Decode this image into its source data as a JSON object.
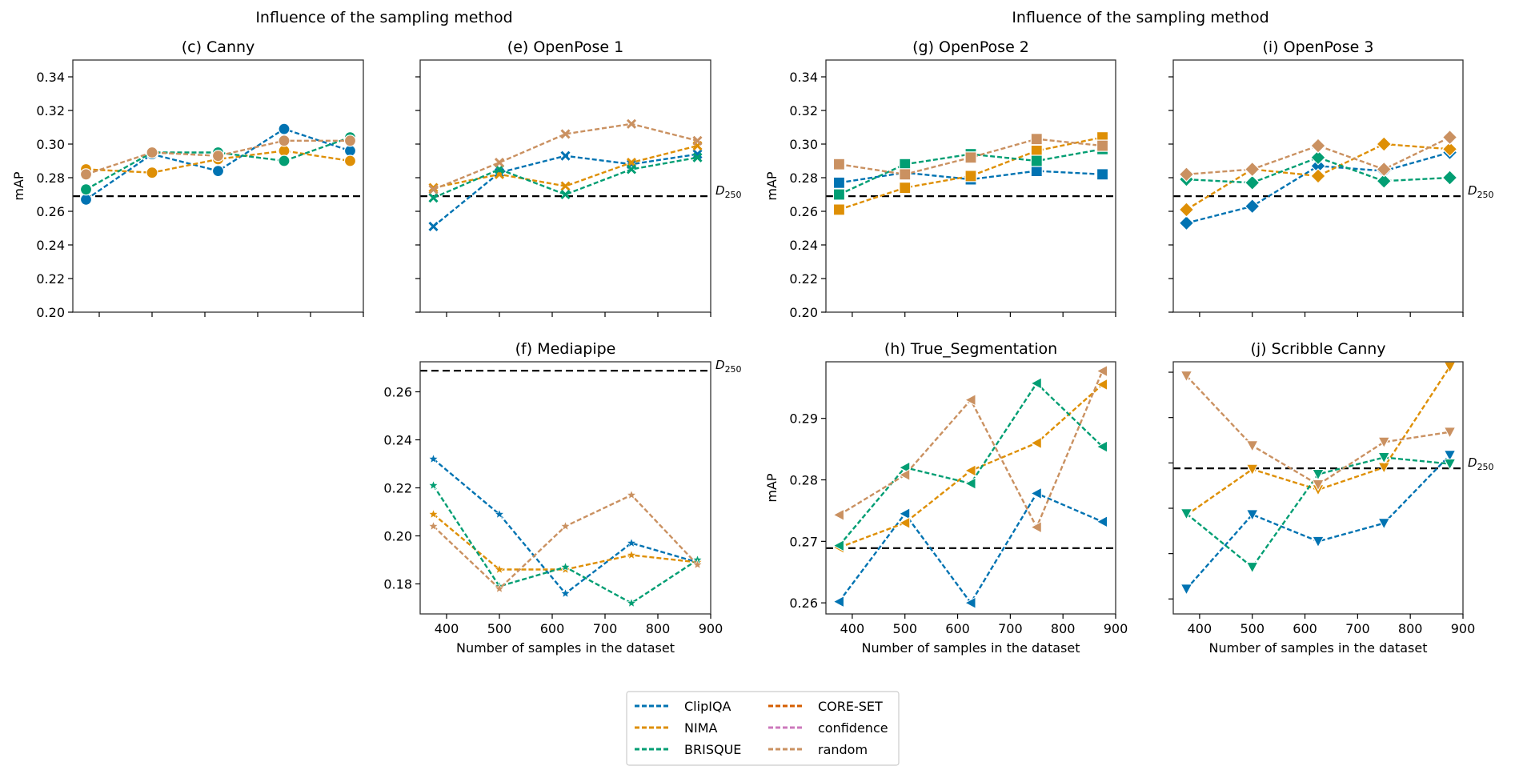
{
  "suptitles": [
    "Influence of the sampling method",
    "Influence of the sampling method"
  ],
  "legend": {
    "entries": [
      {
        "label": "ClipIQA",
        "color": "#0173b2"
      },
      {
        "label": "NIMA",
        "color": "#de8f05"
      },
      {
        "label": "BRISQUE",
        "color": "#029e73"
      },
      {
        "label": "CORE-SET",
        "color": "#d55e00"
      },
      {
        "label": "confidence",
        "color": "#cc78bc"
      },
      {
        "label": "random",
        "color": "#ca9161"
      }
    ]
  },
  "chart_data": [
    {
      "id": "c",
      "type": "line",
      "title": "(c) Canny",
      "marker": "circle",
      "xlabel": "",
      "ylabel": "mAP",
      "x": [
        375,
        500,
        625,
        750,
        875
      ],
      "xlim": [
        350,
        900
      ],
      "xticks": [
        400,
        500,
        600,
        700,
        800,
        900
      ],
      "show_xtick_labels": false,
      "ylim": [
        0.2,
        0.35
      ],
      "yticks": [
        0.2,
        0.22,
        0.24,
        0.26,
        0.28,
        0.3,
        0.32,
        0.34
      ],
      "ytick_labels": [
        "0.20",
        "0.22",
        "0.24",
        "0.26",
        "0.28",
        "0.30",
        "0.32",
        "0.34"
      ],
      "baseline": {
        "label": "",
        "value": 0.269
      },
      "series": [
        {
          "name": "ClipIQA",
          "values": [
            0.267,
            0.294,
            0.284,
            0.309,
            0.296
          ]
        },
        {
          "name": "NIMA",
          "values": [
            0.285,
            0.283,
            0.291,
            0.296,
            0.29
          ]
        },
        {
          "name": "BRISQUE",
          "values": [
            0.273,
            0.295,
            0.295,
            0.29,
            0.304
          ]
        },
        {
          "name": "random",
          "values": [
            0.282,
            0.295,
            0.293,
            0.302,
            0.302
          ]
        }
      ]
    },
    {
      "id": "e",
      "type": "line",
      "title": "(e) OpenPose 1",
      "marker": "x",
      "xlabel": "",
      "ylabel": "",
      "x": [
        375,
        500,
        625,
        750,
        875
      ],
      "xlim": [
        350,
        900
      ],
      "xticks": [
        400,
        500,
        600,
        700,
        800,
        900
      ],
      "show_xtick_labels": false,
      "ylim": [
        0.2,
        0.35
      ],
      "yticks": [
        0.2,
        0.22,
        0.24,
        0.26,
        0.28,
        0.3,
        0.32,
        0.34
      ],
      "ytick_labels": [],
      "baseline": {
        "label": "D250",
        "value": 0.269
      },
      "series": [
        {
          "name": "ClipIQA",
          "values": [
            0.251,
            0.283,
            0.293,
            0.288,
            0.294
          ]
        },
        {
          "name": "NIMA",
          "values": [
            0.274,
            0.282,
            0.275,
            0.289,
            0.299
          ]
        },
        {
          "name": "BRISQUE",
          "values": [
            0.268,
            0.285,
            0.27,
            0.285,
            0.292
          ]
        },
        {
          "name": "random",
          "values": [
            0.273,
            0.289,
            0.306,
            0.312,
            0.302
          ]
        }
      ]
    },
    {
      "id": "f",
      "type": "line",
      "title": "(f) Mediapipe",
      "marker": "star",
      "xlabel": "Number of samples in the dataset",
      "ylabel": "",
      "x": [
        375,
        500,
        625,
        750,
        875
      ],
      "xlim": [
        350,
        900
      ],
      "xticks": [
        400,
        500,
        600,
        700,
        800,
        900
      ],
      "show_xtick_labels": true,
      "xtick_labels": [
        "400",
        "500",
        "600",
        "700",
        "800",
        "900"
      ],
      "ylim": [
        0.1675,
        0.2725
      ],
      "yticks": [
        0.18,
        0.2,
        0.22,
        0.24,
        0.26
      ],
      "ytick_labels": [
        "0.18",
        "0.20",
        "0.22",
        "0.24",
        "0.26"
      ],
      "baseline": {
        "label": "D250",
        "value": 0.2688
      },
      "series": [
        {
          "name": "ClipIQA",
          "values": [
            0.232,
            0.209,
            0.176,
            0.197,
            0.189
          ]
        },
        {
          "name": "NIMA",
          "values": [
            0.209,
            0.186,
            0.186,
            0.192,
            0.189
          ]
        },
        {
          "name": "BRISQUE",
          "values": [
            0.221,
            0.179,
            0.187,
            0.172,
            0.19
          ]
        },
        {
          "name": "random",
          "values": [
            0.204,
            0.178,
            0.204,
            0.217,
            0.188
          ]
        }
      ]
    },
    {
      "id": "g",
      "type": "line",
      "title": "(g) OpenPose 2",
      "marker": "square",
      "xlabel": "",
      "ylabel": "mAP",
      "x": [
        375,
        500,
        625,
        750,
        875
      ],
      "xlim": [
        350,
        900
      ],
      "xticks": [
        400,
        500,
        600,
        700,
        800,
        900
      ],
      "show_xtick_labels": false,
      "ylim": [
        0.2,
        0.35
      ],
      "yticks": [
        0.2,
        0.22,
        0.24,
        0.26,
        0.28,
        0.3,
        0.32,
        0.34
      ],
      "ytick_labels": [
        "0.20",
        "0.22",
        "0.24",
        "0.26",
        "0.28",
        "0.30",
        "0.32",
        "0.34"
      ],
      "baseline": {
        "label": "",
        "value": 0.269
      },
      "series": [
        {
          "name": "ClipIQA",
          "values": [
            0.277,
            0.283,
            0.279,
            0.284,
            0.282
          ]
        },
        {
          "name": "NIMA",
          "values": [
            0.261,
            0.274,
            0.281,
            0.296,
            0.304
          ]
        },
        {
          "name": "BRISQUE",
          "values": [
            0.27,
            0.288,
            0.294,
            0.29,
            0.297
          ]
        },
        {
          "name": "random",
          "values": [
            0.288,
            0.282,
            0.292,
            0.303,
            0.299
          ]
        }
      ]
    },
    {
      "id": "i",
      "type": "line",
      "title": "(i) OpenPose 3",
      "marker": "diamond",
      "xlabel": "",
      "ylabel": "",
      "x": [
        375,
        500,
        625,
        750,
        875
      ],
      "xlim": [
        350,
        900
      ],
      "xticks": [
        400,
        500,
        600,
        700,
        800,
        900
      ],
      "show_xtick_labels": false,
      "ylim": [
        0.2,
        0.35
      ],
      "yticks": [
        0.2,
        0.22,
        0.24,
        0.26,
        0.28,
        0.3,
        0.32,
        0.34
      ],
      "ytick_labels": [],
      "baseline": {
        "label": "D250",
        "value": 0.269
      },
      "series": [
        {
          "name": "ClipIQA",
          "values": [
            0.253,
            0.263,
            0.287,
            0.284,
            0.295
          ]
        },
        {
          "name": "NIMA",
          "values": [
            0.261,
            0.285,
            0.281,
            0.3,
            0.297
          ]
        },
        {
          "name": "BRISQUE",
          "values": [
            0.279,
            0.277,
            0.292,
            0.278,
            0.28
          ]
        },
        {
          "name": "random",
          "values": [
            0.282,
            0.285,
            0.299,
            0.285,
            0.304
          ]
        }
      ]
    },
    {
      "id": "h",
      "type": "line",
      "title": "(h) True_Segmentation",
      "marker": "triangle-left",
      "xlabel": "Number of samples in the dataset",
      "ylabel": "mAP",
      "x": [
        375,
        500,
        625,
        750,
        875
      ],
      "xlim": [
        350,
        900
      ],
      "xticks": [
        400,
        500,
        600,
        700,
        800,
        900
      ],
      "show_xtick_labels": true,
      "xtick_labels": [
        "400",
        "500",
        "600",
        "700",
        "800",
        "900"
      ],
      "ylim": [
        0.2582,
        0.2992
      ],
      "yticks": [
        0.26,
        0.27,
        0.28,
        0.29
      ],
      "ytick_labels": [
        "0.26",
        "0.27",
        "0.28",
        "0.29"
      ],
      "baseline": {
        "label": "",
        "value": 0.2689
      },
      "series": [
        {
          "name": "ClipIQA",
          "values": [
            0.2602,
            0.2745,
            0.26,
            0.2778,
            0.2732
          ]
        },
        {
          "name": "NIMA",
          "values": [
            0.269,
            0.273,
            0.2815,
            0.286,
            0.2955
          ]
        },
        {
          "name": "BRISQUE",
          "values": [
            0.2693,
            0.282,
            0.2794,
            0.2957,
            0.2854
          ]
        },
        {
          "name": "random",
          "values": [
            0.2743,
            0.2808,
            0.293,
            0.2723,
            0.2977
          ]
        }
      ]
    },
    {
      "id": "j",
      "type": "line",
      "title": "(j) Scribble Canny",
      "marker": "triangle-down",
      "xlabel": "Number of samples in the dataset",
      "ylabel": "",
      "x": [
        375,
        500,
        625,
        750,
        875
      ],
      "xlim": [
        350,
        900
      ],
      "xticks": [
        400,
        500,
        600,
        700,
        800,
        900
      ],
      "show_xtick_labels": true,
      "xtick_labels": [
        "400",
        "500",
        "600",
        "700",
        "800",
        "900"
      ],
      "ylim": [
        0.2467,
        0.3023
      ],
      "yticks": [
        0.25,
        0.26,
        0.27,
        0.28,
        0.29,
        0.3
      ],
      "ytick_labels": [],
      "baseline": {
        "label": "D250",
        "value": 0.2788
      },
      "series": [
        {
          "name": "ClipIQA",
          "values": [
            0.2522,
            0.2686,
            0.2627,
            0.2667,
            0.2817
          ]
        },
        {
          "name": "NIMA",
          "values": [
            0.2685,
            0.2786,
            0.2741,
            0.279,
            0.3012
          ]
        },
        {
          "name": "BRISQUE",
          "values": [
            0.2688,
            0.257,
            0.2775,
            0.2812,
            0.2798
          ]
        },
        {
          "name": "random",
          "values": [
            0.2992,
            0.2838,
            0.2752,
            0.2846,
            0.2868
          ]
        }
      ]
    }
  ]
}
